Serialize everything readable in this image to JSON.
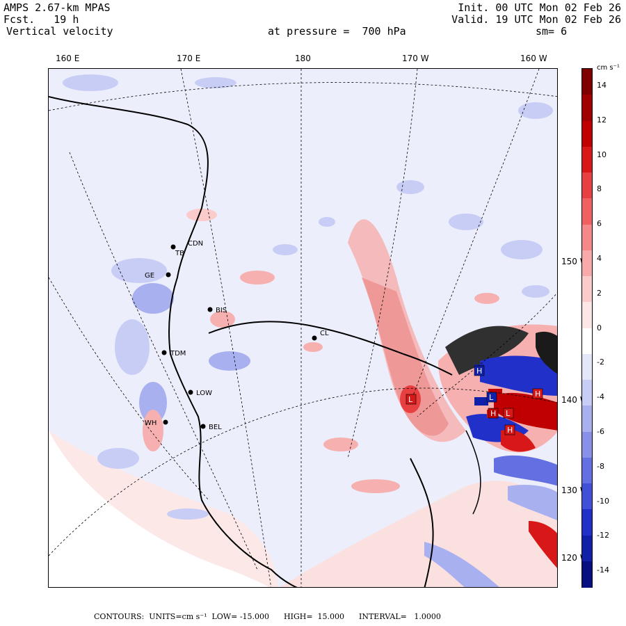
{
  "header": {
    "model": "AMPS 2.67-km MPAS",
    "forecast": "Fcst.   19 h",
    "field": "Vertical velocity",
    "init": "Init. 00 UTC Mon 02 Feb 26",
    "valid": "Valid. 19 UTC Mon 02 Feb 26",
    "level": "at pressure =  700 hPa",
    "smoothing": "sm= 6"
  },
  "longitude_labels": [
    "160 E",
    "170 E",
    "180",
    "170 W",
    "160 W"
  ],
  "latitude_labels": [
    "150 W",
    "140 W",
    "130 W",
    "120 W"
  ],
  "stations": [
    "CDN",
    "TB",
    "GE",
    "BIS",
    "TDM",
    "LOW",
    "WH",
    "BEL",
    "CL"
  ],
  "highs_lows": [
    "L",
    "L",
    "H",
    "L",
    "H",
    "H",
    "H"
  ],
  "colorbar": {
    "unit": "cm s⁻¹",
    "ticks": [
      "14",
      "12",
      "10",
      "8",
      "6",
      "4",
      "2",
      "0",
      "-2",
      "-4",
      "-6",
      "-8",
      "-10",
      "-12",
      "-14"
    ],
    "colors": [
      "#800000",
      "#a00000",
      "#c00000",
      "#d81818",
      "#e84040",
      "#f06060",
      "#f58888",
      "#f8aaaa",
      "#fbcaca",
      "#fde6e6",
      "#ffffff",
      "#e4e6fa",
      "#c8cdf6",
      "#a8b0f0",
      "#8890ea",
      "#6470e2",
      "#4050d8",
      "#2030c8",
      "#1020a8",
      "#081080"
    ]
  },
  "footer": {
    "text": "CONTOURS:  UNITS=cm s⁻¹  LOW= -15.000      HIGH=  15.000      INTERVAL=   1.0000"
  },
  "chart_data": {
    "type": "heatmap",
    "variable": "Vertical velocity",
    "level_hPa": 700,
    "units": "cm s-1",
    "contour_low": -15.0,
    "contour_high": 15.0,
    "contour_interval": 1.0,
    "colorbar_range": [
      -15,
      15
    ]
  }
}
